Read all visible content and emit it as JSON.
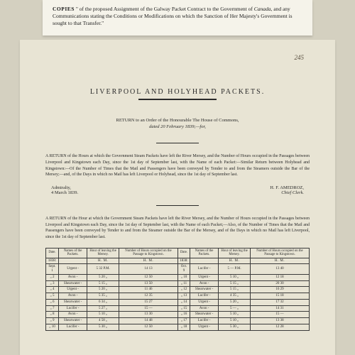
{
  "top_slip": {
    "text_lead": "COPIES",
    "text_body": " \" of the proposed Assignment of the Galway Packet Contract to the Government of ",
    "text_canada": "Canada",
    "text_body2": ", and any Communications stating the Conditions or Modifications on which the Sanction of Her Majesty's Government is sought to that Transfer.\""
  },
  "page_number": "245",
  "main_title": "LIVERPOOL AND HOLYHEAD PACKETS.",
  "return_order": {
    "line1": "RETURN to an Order of the Honourable The House of Commons,",
    "line2": "dated 20 February 1839;—for,"
  },
  "return_para1": "A RETURN of the Hours at which the Government Steam Packets have left the River Mersey, and the Number of Hours occupied in the Passages between Liverpool and Kingstown each Day, since the 1st day of September last, with the Name of each Packet:—Similar Return between Holyhead and Kingstown:—Of the Number of Times that the Mail and Passengers have been conveyed by Tender to and from the Steamers outside the Bar of the Mersey;—and, of the Days in which no Mail has left Liverpool or Holyhead, since the 1st day of September last.",
  "signature": {
    "left_line1": "Admiralty,",
    "left_line2": "4 March 1839.",
    "right_name": "H. F. AMEDROZ,",
    "right_title": "Chief Clerk."
  },
  "return_para2": "A RETURN of the Hour at which the Government Steam Packets have left the River Mersey, and the Number of Hours occupied in the Passages between Liverpool and Kingstown each Day, since the 1st day of September last, with the Name of each Packet;—Also, of the Number of Times that the Mail and Passengers have been conveyed by Tender to and from the Steamer outside the Bar of the Mersey, and of the Days in which no Mail has left Liverpool, since the 1st day of September last.",
  "table": {
    "headers": {
      "date": "Date.",
      "packet": "Names of the Packets.",
      "leaving": "Hour of leaving the Mersey.",
      "passage": "Number of Hours occupied on the Passage to Kingstown."
    },
    "year_left": "1838:",
    "year_right": "1838:",
    "sub_hm": "H.   M.",
    "rows_left": [
      {
        "d": "Sept. 1",
        "p": "Urgent",
        "h": "5 32 P.M.",
        "n": "14 13"
      },
      {
        "d": "„ 2",
        "p": "Avon",
        "h": "5 20 „",
        "n": "12 50"
      },
      {
        "d": "„ 3",
        "p": "Shearwater",
        "h": "5 15 „",
        "n": "13 50"
      },
      {
        "d": "„ 4",
        "p": "Urgent",
        "h": "5 20 „",
        "n": "11 46"
      },
      {
        "d": "„ 5",
        "p": "Avon",
        "h": "5 35 „",
        "n": "12 35"
      },
      {
        "d": "„ 6",
        "p": "Shearwater",
        "h": "6 34 „",
        "n": "15 27"
      },
      {
        "d": "„ 7",
        "p": "Lucifer",
        "h": "5 27 „",
        "n": "15 —"
      },
      {
        "d": "„ 8",
        "p": "Avon",
        "h": "5 10 „",
        "n": "13 30"
      },
      {
        "d": "„ 9",
        "p": "Shearwater",
        "h": "4 58 „",
        "n": "14 48"
      },
      {
        "d": "„ 10",
        "p": "Lucifer",
        "h": "5 30 „",
        "n": "12 50"
      }
    ],
    "rows_right": [
      {
        "d": "Oct. 9",
        "p": "Lucifer",
        "h": "5 — P.M.",
        "n": "13 40"
      },
      {
        "d": "„ 10",
        "p": "Urgent",
        "h": "5 10 „",
        "n": "12 18"
      },
      {
        "d": "„ 11",
        "p": "Avon",
        "h": "5 15 „",
        "n": "20 30"
      },
      {
        "d": "„ 12",
        "p": "Shearwater",
        "h": "5 15 „",
        "n": "16 29"
      },
      {
        "d": "„ 13",
        "p": "Lucifer",
        "h": "4 35 „",
        "n": "15 18"
      },
      {
        "d": "„ 14",
        "p": "Urgent",
        "h": "5 20 „",
        "n": "17 32"
      },
      {
        "d": "„ 15",
        "p": "Avon",
        "h": "5 — „",
        "n": "14 31"
      },
      {
        "d": "„ 16",
        "p": "Shearwater",
        "h": "5 10 „",
        "n": "15 —"
      },
      {
        "d": "„ 17",
        "p": "Lucifer",
        "h": "5 10 „",
        "n": "13 38"
      },
      {
        "d": "„ 18",
        "p": "Urgent",
        "h": "5 30 „",
        "n": "12 28"
      }
    ]
  }
}
